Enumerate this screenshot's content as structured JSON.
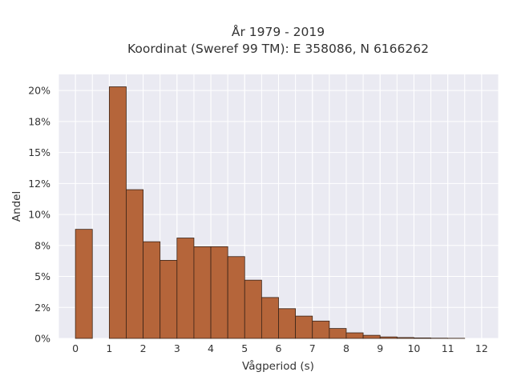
{
  "chart_data": {
    "type": "bar",
    "title": "År 1979 - 2019",
    "subtitle": "Koordinat (Sweref 99 TM): E 358086, N 6166262",
    "xlabel": "Vågperiod (s)",
    "ylabel": "Andel",
    "x_ticks": [
      "0",
      "1",
      "2",
      "3",
      "4",
      "5",
      "6",
      "7",
      "8",
      "9",
      "10",
      "11",
      "12"
    ],
    "y_ticks": [
      "0%",
      "2%",
      "5%",
      "8%",
      "10%",
      "12%",
      "15%",
      "18%",
      "20%"
    ],
    "y_tick_values": [
      0,
      2.5,
      5,
      7.5,
      10,
      12.5,
      15,
      17.5,
      20
    ],
    "xlim": [
      -0.5,
      12.5
    ],
    "ylim": [
      0,
      21.3
    ],
    "bin_width": 0.5,
    "bins": [
      {
        "x": 0.0,
        "value": 8.8
      },
      {
        "x": 1.0,
        "value": 20.3
      },
      {
        "x": 1.5,
        "value": 12.0
      },
      {
        "x": 2.0,
        "value": 7.8
      },
      {
        "x": 2.5,
        "value": 6.3
      },
      {
        "x": 3.0,
        "value": 8.1
      },
      {
        "x": 3.5,
        "value": 7.4
      },
      {
        "x": 4.0,
        "value": 7.4
      },
      {
        "x": 4.5,
        "value": 6.6
      },
      {
        "x": 5.0,
        "value": 4.7
      },
      {
        "x": 5.5,
        "value": 3.3
      },
      {
        "x": 6.0,
        "value": 2.4
      },
      {
        "x": 6.5,
        "value": 1.8
      },
      {
        "x": 7.0,
        "value": 1.4
      },
      {
        "x": 7.5,
        "value": 0.8
      },
      {
        "x": 8.0,
        "value": 0.45
      },
      {
        "x": 8.5,
        "value": 0.25
      },
      {
        "x": 9.0,
        "value": 0.12
      },
      {
        "x": 9.5,
        "value": 0.07
      },
      {
        "x": 10.0,
        "value": 0.04
      },
      {
        "x": 10.5,
        "value": 0.02
      },
      {
        "x": 11.0,
        "value": 0.01
      }
    ],
    "bar_color": "#b5653a",
    "edge_color": "#3a2418",
    "plot_background": "#eaeaf2",
    "grid": true
  }
}
